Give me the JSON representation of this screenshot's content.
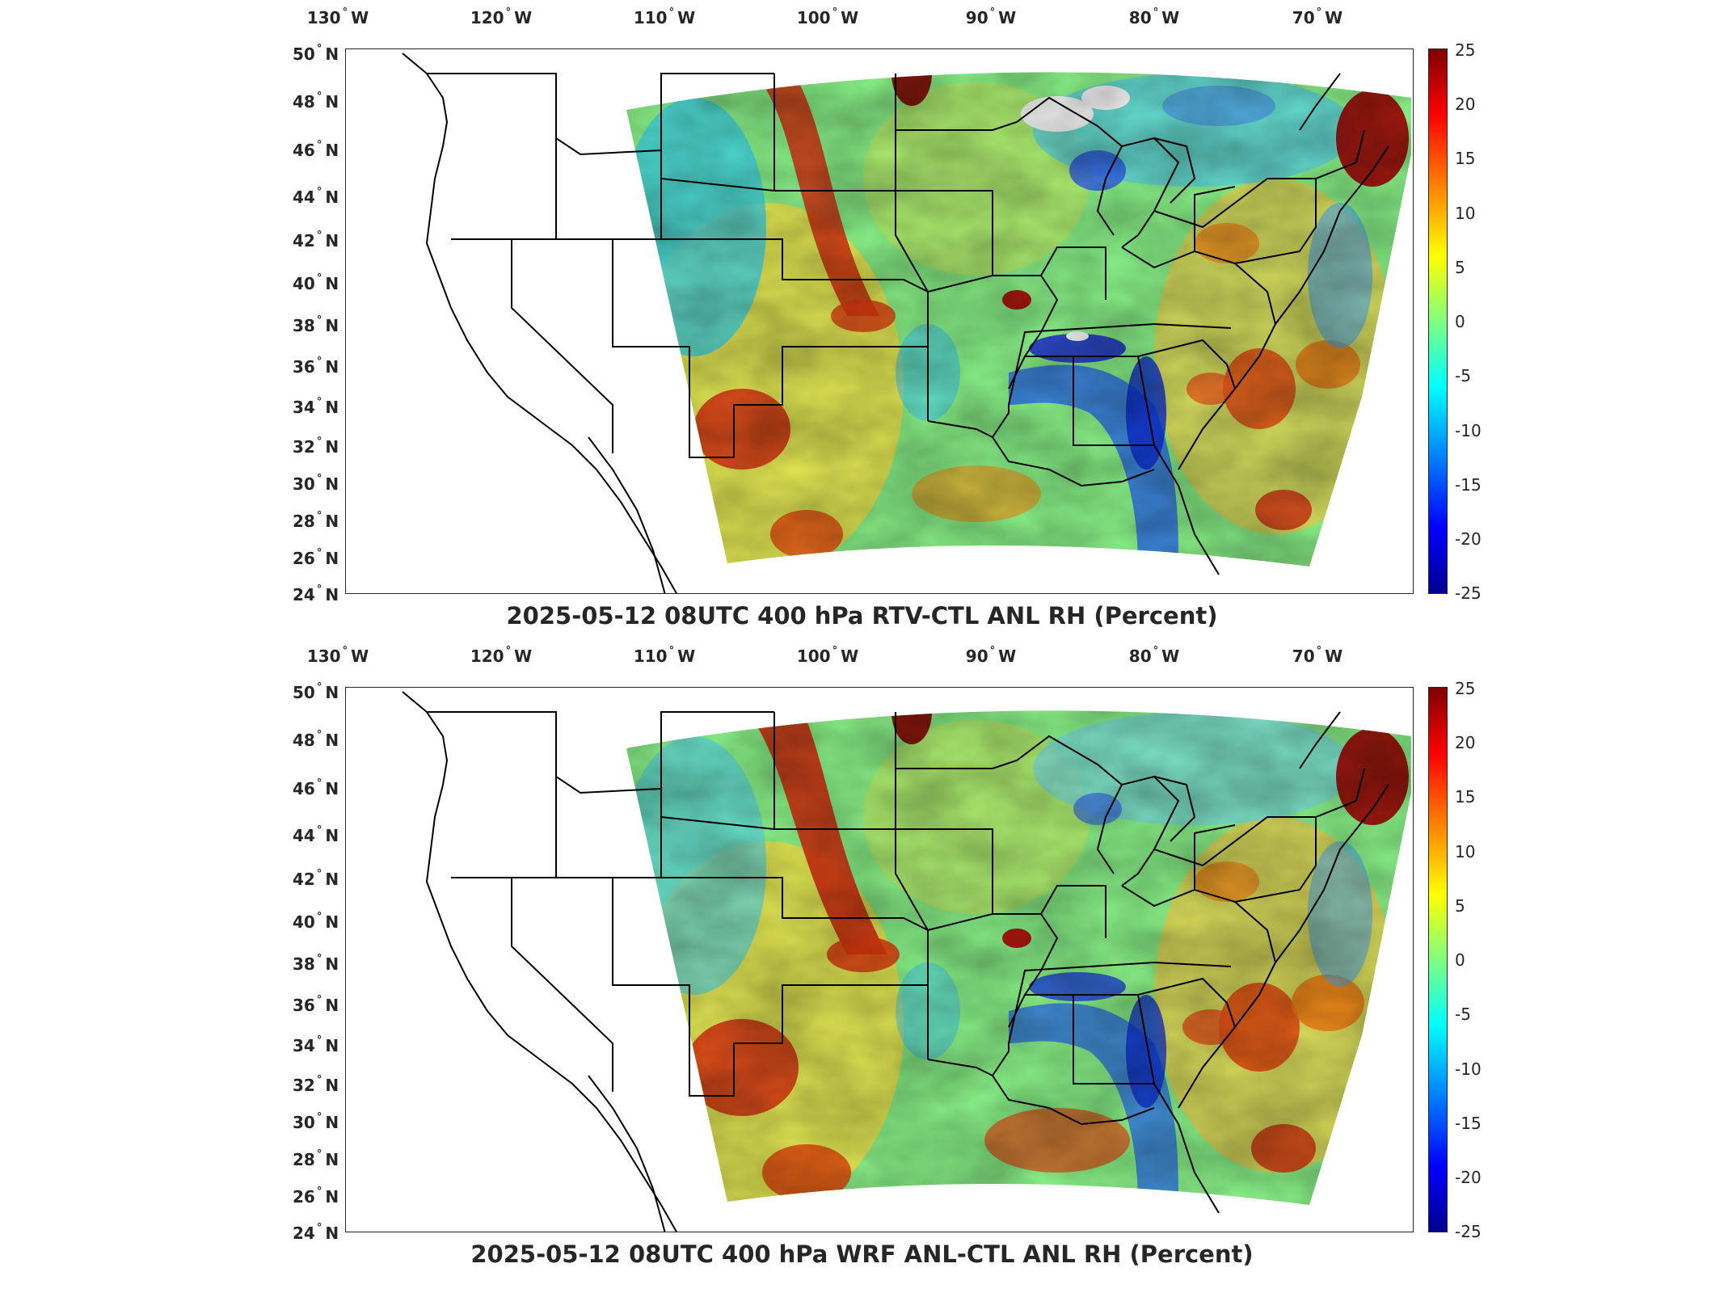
{
  "panels": [
    {
      "title": "2025-05-12 08UTC 400 hPa RTV-CTL ANL RH (Percent)",
      "field": "top"
    },
    {
      "title": "2025-05-12 08UTC 400 hPa WRF ANL-CTL ANL RH (Percent)",
      "field": "bottom"
    }
  ],
  "lon_labels": [
    {
      "deg": "130",
      "dir": "W"
    },
    {
      "deg": "120",
      "dir": "W"
    },
    {
      "deg": "110",
      "dir": "W"
    },
    {
      "deg": "100",
      "dir": "W"
    },
    {
      "deg": "90",
      "dir": "W"
    },
    {
      "deg": "80",
      "dir": "W"
    },
    {
      "deg": "70",
      "dir": "W"
    }
  ],
  "lat_labels": [
    {
      "deg": "50",
      "dir": "N"
    },
    {
      "deg": "48",
      "dir": "N"
    },
    {
      "deg": "46",
      "dir": "N"
    },
    {
      "deg": "44",
      "dir": "N"
    },
    {
      "deg": "42",
      "dir": "N"
    },
    {
      "deg": "40",
      "dir": "N"
    },
    {
      "deg": "38",
      "dir": "N"
    },
    {
      "deg": "36",
      "dir": "N"
    },
    {
      "deg": "34",
      "dir": "N"
    },
    {
      "deg": "32",
      "dir": "N"
    },
    {
      "deg": "30",
      "dir": "N"
    },
    {
      "deg": "28",
      "dir": "N"
    },
    {
      "deg": "26",
      "dir": "N"
    },
    {
      "deg": "24",
      "dir": "N"
    }
  ],
  "colorbar": {
    "ticks": [
      "25",
      "20",
      "15",
      "10",
      "5",
      "0",
      "-5",
      "-10",
      "-15",
      "-20",
      "-25"
    ],
    "min": -25,
    "max": 25,
    "colormap": "jet"
  },
  "colors": {
    "positive_max": "#7f0000",
    "negative_min": "#00008f",
    "neutral": "#80ff80"
  }
}
